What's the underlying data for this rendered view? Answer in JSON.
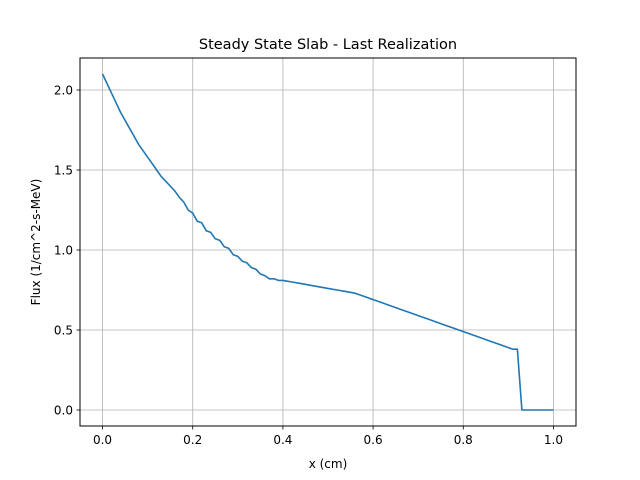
{
  "chart_data": {
    "type": "line",
    "title": "Steady State Slab - Last Realization",
    "xlabel": "x (cm)",
    "ylabel": "Flux (1/cm^2-s-MeV)",
    "xlim": [
      -0.05,
      1.05
    ],
    "ylim": [
      -0.1,
      2.2
    ],
    "xticks": [
      0.0,
      0.2,
      0.4,
      0.6,
      0.8,
      1.0
    ],
    "xtick_labels": [
      "0.0",
      "0.2",
      "0.4",
      "0.6",
      "0.8",
      "1.0"
    ],
    "yticks": [
      0.0,
      0.5,
      1.0,
      1.5,
      2.0
    ],
    "ytick_labels": [
      "0.0",
      "0.5",
      "1.0",
      "1.5",
      "2.0"
    ],
    "grid": true,
    "line_color": "#1f77b4",
    "series": [
      {
        "x": [
          0.0,
          0.01,
          0.02,
          0.03,
          0.04,
          0.05,
          0.06,
          0.07,
          0.08,
          0.09,
          0.1,
          0.11,
          0.12,
          0.13,
          0.14,
          0.15,
          0.16,
          0.17,
          0.18,
          0.19,
          0.2,
          0.21,
          0.22,
          0.23,
          0.24,
          0.25,
          0.26,
          0.27,
          0.28,
          0.29,
          0.3,
          0.31,
          0.32,
          0.33,
          0.34,
          0.35,
          0.36,
          0.37,
          0.38,
          0.39,
          0.4,
          0.42,
          0.44,
          0.46,
          0.48,
          0.5,
          0.52,
          0.54,
          0.56,
          0.58,
          0.6,
          0.62,
          0.64,
          0.66,
          0.68,
          0.7,
          0.72,
          0.74,
          0.76,
          0.78,
          0.8,
          0.82,
          0.84,
          0.86,
          0.88,
          0.9,
          0.91,
          0.92,
          0.93,
          0.94,
          0.95,
          0.96,
          0.97,
          0.98,
          0.99,
          1.0
        ],
        "y": [
          2.1,
          2.04,
          1.98,
          1.92,
          1.86,
          1.81,
          1.76,
          1.71,
          1.66,
          1.62,
          1.58,
          1.54,
          1.5,
          1.46,
          1.43,
          1.4,
          1.37,
          1.33,
          1.3,
          1.25,
          1.23,
          1.18,
          1.17,
          1.12,
          1.11,
          1.07,
          1.06,
          1.02,
          1.01,
          0.97,
          0.96,
          0.93,
          0.92,
          0.89,
          0.88,
          0.85,
          0.84,
          0.82,
          0.82,
          0.81,
          0.81,
          0.8,
          0.79,
          0.78,
          0.77,
          0.76,
          0.75,
          0.74,
          0.73,
          0.71,
          0.69,
          0.67,
          0.65,
          0.63,
          0.61,
          0.59,
          0.57,
          0.55,
          0.53,
          0.51,
          0.49,
          0.47,
          0.45,
          0.43,
          0.41,
          0.39,
          0.38,
          0.38,
          0.0,
          0.0,
          0.0,
          0.0,
          0.0,
          0.0,
          0.0,
          0.0
        ]
      }
    ]
  }
}
